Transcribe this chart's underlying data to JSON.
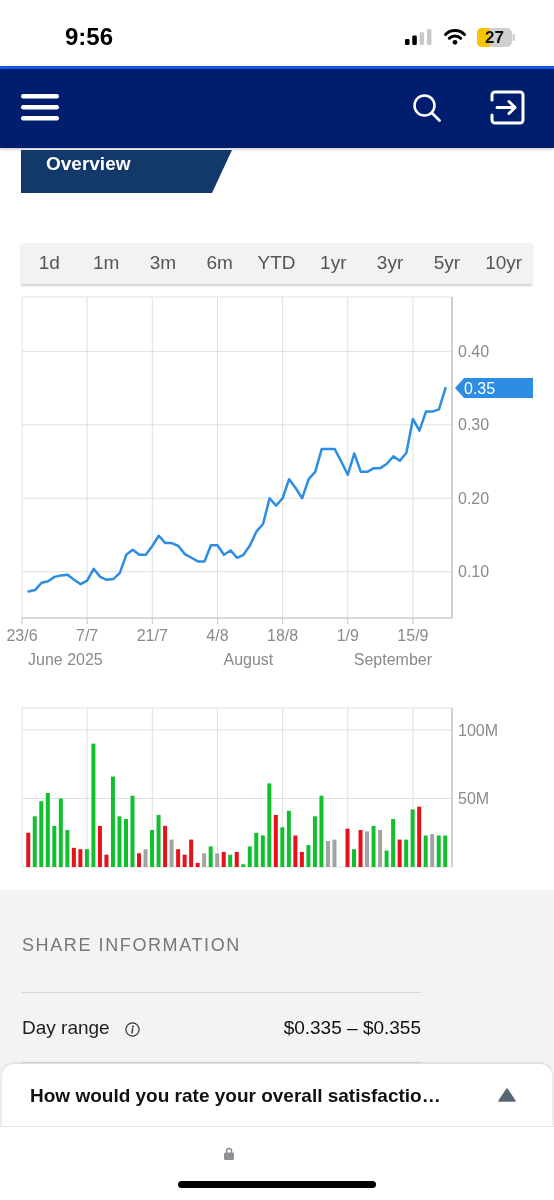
{
  "chart_data": [
    {
      "type": "other",
      "annotations": [
        "9:56",
        "27"
      ]
    },
    {
      "type": "line",
      "title": "Overview",
      "categories": [
        "23/6",
        null,
        null,
        null,
        null,
        null,
        null,
        null,
        null,
        null,
        "7/7",
        null,
        null,
        null,
        null,
        null,
        null,
        null,
        null,
        null,
        "21/7",
        null,
        null,
        null,
        null,
        null,
        null,
        null,
        null,
        null,
        "4/8",
        null,
        null,
        null,
        null,
        null,
        null,
        null,
        null,
        null,
        "18/8",
        null,
        null,
        null,
        null,
        null,
        null,
        null,
        null,
        null,
        "1/9",
        null,
        null,
        null,
        null,
        null,
        null,
        null,
        null,
        null,
        "15/9",
        null,
        null,
        null,
        null,
        null
      ],
      "values": [
        null,
        0.073,
        0.075,
        0.085,
        0.087,
        0.093,
        0.095,
        0.096,
        0.089,
        0.083,
        0.088,
        0.104,
        0.093,
        0.089,
        0.09,
        0.098,
        0.123,
        0.13,
        0.123,
        0.123,
        0.135,
        0.149,
        0.139,
        0.139,
        0.135,
        0.124,
        0.119,
        0.114,
        0.114,
        0.136,
        0.136,
        0.123,
        0.129,
        0.119,
        0.123,
        0.136,
        0.155,
        0.165,
        0.2,
        0.19,
        0.2,
        0.226,
        0.214,
        0.2,
        0.226,
        0.236,
        0.267,
        0.267,
        0.267,
        0.25,
        0.232,
        0.261,
        0.236,
        0.236,
        0.241,
        0.241,
        0.247,
        0.257,
        0.251,
        0.262,
        0.308,
        0.292,
        0.318,
        0.318,
        0.321,
        0.35
      ],
      "color": "#2d8de3",
      "ylim": [
        0.037,
        0.474
      ],
      "yticks": [
        {
          "value": 0.1,
          "label": "0.10"
        },
        {
          "value": 0.2,
          "label": "0.20"
        },
        {
          "value": 0.3,
          "label": "0.30"
        },
        {
          "value": 0.4,
          "label": "0.40"
        }
      ],
      "grid": true,
      "annotations": [
        "1d",
        "1m",
        "3m",
        "6m",
        "YTD",
        "1yr",
        "3yr",
        "5yr",
        "10yr",
        "June 2025",
        "August",
        "September",
        "0.35"
      ]
    },
    {
      "type": "bar",
      "categories": [
        null,
        null,
        null,
        null,
        null,
        null,
        null,
        null,
        null,
        null,
        null,
        null,
        null,
        null,
        null,
        null,
        null,
        null,
        null,
        null,
        null,
        null,
        null,
        null,
        null,
        null,
        null,
        null,
        null,
        null,
        null,
        null,
        null,
        null,
        null,
        null,
        null,
        null,
        null,
        null,
        null,
        null,
        null,
        null,
        null,
        null,
        null,
        null,
        null,
        null,
        null,
        null,
        null,
        null,
        null,
        null,
        null,
        null,
        null,
        null,
        null,
        null,
        null,
        null,
        null,
        null
      ],
      "values": [
        null,
        25,
        37,
        48,
        54,
        30,
        50,
        27,
        14,
        13,
        13,
        90,
        30,
        9,
        66,
        37,
        35,
        52,
        10,
        13,
        27,
        38,
        30,
        20,
        13,
        9,
        20,
        3,
        10,
        15,
        10,
        11,
        9,
        11,
        2,
        15,
        25,
        23,
        61,
        38,
        29,
        41,
        23,
        11,
        16,
        37,
        52,
        19,
        20,
        null,
        28,
        13,
        27,
        26,
        30,
        27,
        12,
        35,
        20,
        20,
        42,
        44,
        23,
        24,
        23,
        23
      ],
      "colors": [
        null,
        "#e8101b",
        "#12bf2e",
        "#12bf2e",
        "#12bf2e",
        "#12bf2e",
        "#12bf2e",
        "#12bf2e",
        "#e8101b",
        "#e8101b",
        "#12bf2e",
        "#12bf2e",
        "#e8101b",
        "#e8101b",
        "#12bf2e",
        "#12bf2e",
        "#12bf2e",
        "#12bf2e",
        "#e8101b",
        "#a3a3a3",
        "#12bf2e",
        "#12bf2e",
        "#e8101b",
        "#a3a3a3",
        "#e8101b",
        "#e8101b",
        "#e8101b",
        "#e8101b",
        "#a3a3a3",
        "#12bf2e",
        "#a3a3a3",
        "#e8101b",
        "#12bf2e",
        "#e8101b",
        "#12bf2e",
        "#12bf2e",
        "#12bf2e",
        "#12bf2e",
        "#12bf2e",
        "#e8101b",
        "#12bf2e",
        "#12bf2e",
        "#e8101b",
        "#e8101b",
        "#12bf2e",
        "#12bf2e",
        "#12bf2e",
        "#a3a3a3",
        "#a3a3a3",
        null,
        "#e8101b",
        "#12bf2e",
        "#e8101b",
        "#a3a3a3",
        "#12bf2e",
        "#a3a3a3",
        "#12bf2e",
        "#12bf2e",
        "#e8101b",
        "#12bf2e",
        "#12bf2e",
        "#e8101b",
        "#12bf2e",
        "#a3a3a3",
        "#12bf2e",
        "#12bf2e"
      ],
      "ylim": [
        0,
        116
      ],
      "yticks": [
        {
          "value": 50,
          "label": "50M"
        },
        {
          "value": 100,
          "label": "100M"
        }
      ],
      "grid": true,
      "tick_labels": "y"
    },
    {
      "type": "other",
      "title": "SHARE INFORMATION",
      "annotations": [
        "Day range",
        "$0.335 – $0.355",
        "How would you rate your overall satisfactio…"
      ]
    }
  ]
}
